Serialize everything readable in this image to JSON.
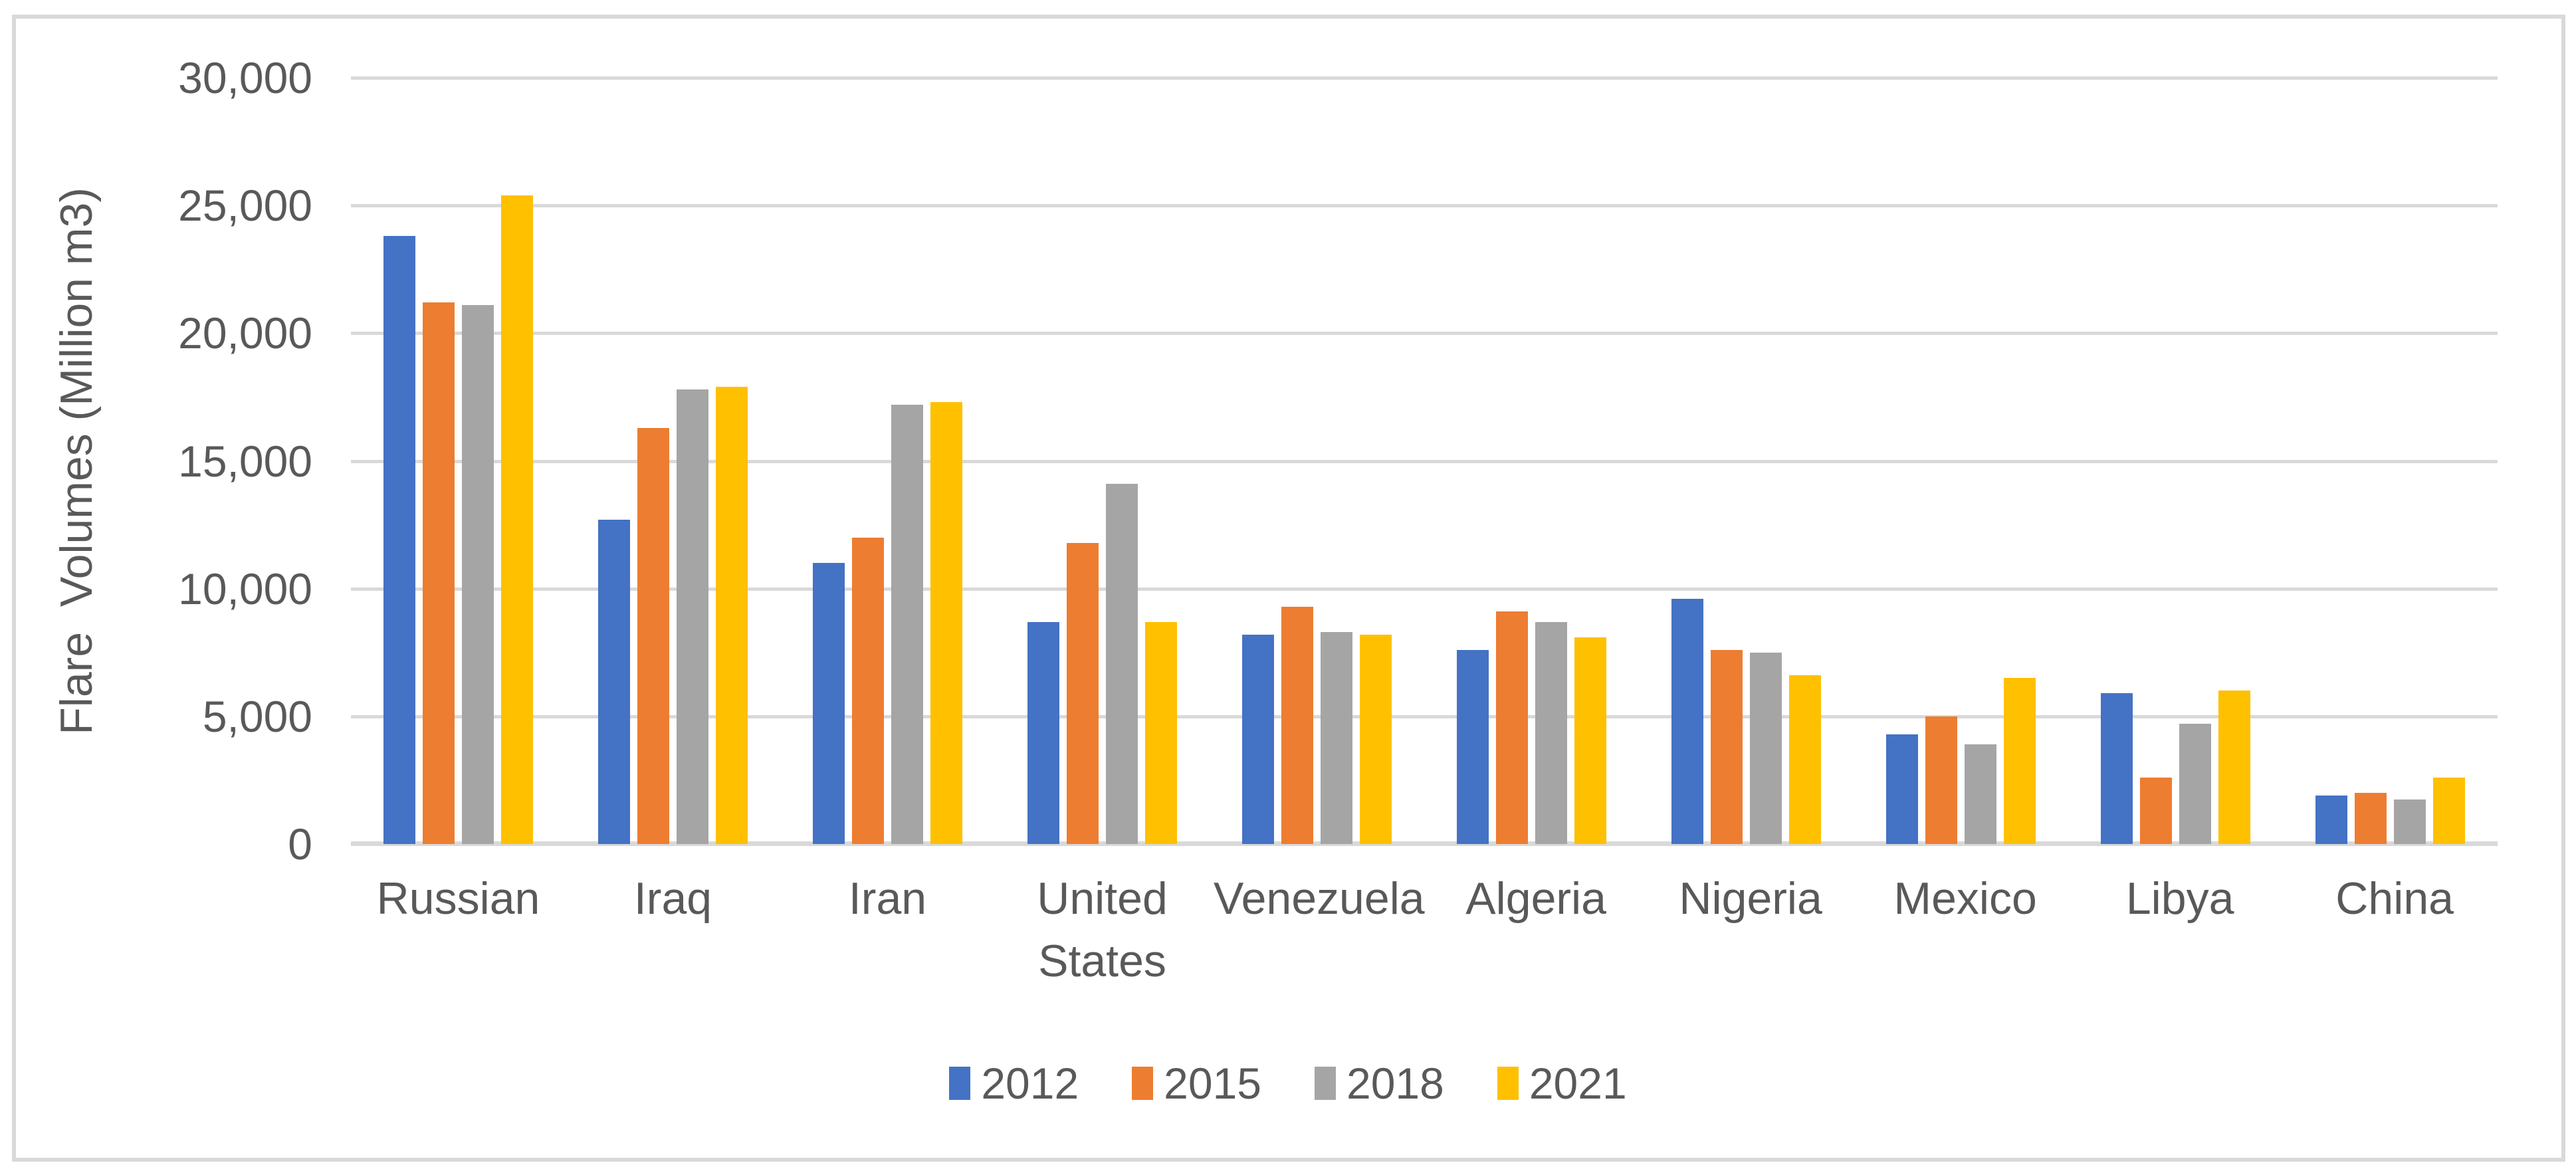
{
  "chart_data": {
    "type": "bar",
    "title": "",
    "xlabel": "",
    "ylabel": "Flare  Volumes (Million m3)",
    "ylim": [
      0,
      30000
    ],
    "ytick_step": 5000,
    "ytick_labels": [
      "0",
      "5,000",
      "10,000",
      "15,000",
      "20,000",
      "25,000",
      "30,000"
    ],
    "grid": true,
    "legend_position": "bottom",
    "categories": [
      "Russian",
      "Iraq",
      "Iran",
      "United States",
      "Venezuela",
      "Algeria",
      "Nigeria",
      "Mexico",
      "Libya",
      "China"
    ],
    "series": [
      {
        "name": "2012",
        "color": "#4472C4",
        "values": [
          23800,
          12700,
          11000,
          8700,
          8200,
          7600,
          9600,
          4300,
          5900,
          1900
        ]
      },
      {
        "name": "2015",
        "color": "#ED7D31",
        "values": [
          21200,
          16300,
          12000,
          11800,
          9300,
          9100,
          7600,
          5000,
          2600,
          2000
        ]
      },
      {
        "name": "2018",
        "color": "#A5A5A5",
        "values": [
          21100,
          17800,
          17200,
          14100,
          8300,
          8700,
          7500,
          3900,
          4700,
          1750
        ]
      },
      {
        "name": "2021",
        "color": "#FFC000",
        "values": [
          25400,
          17900,
          17300,
          8700,
          8200,
          8100,
          6600,
          6500,
          6000,
          2600
        ]
      }
    ]
  },
  "styles": {
    "background": "#FFFFFF",
    "border_color": "#D9D9D9",
    "grid_color": "#D9D9D9",
    "axis_color": "#D9D9D9",
    "text_color": "#595959"
  }
}
